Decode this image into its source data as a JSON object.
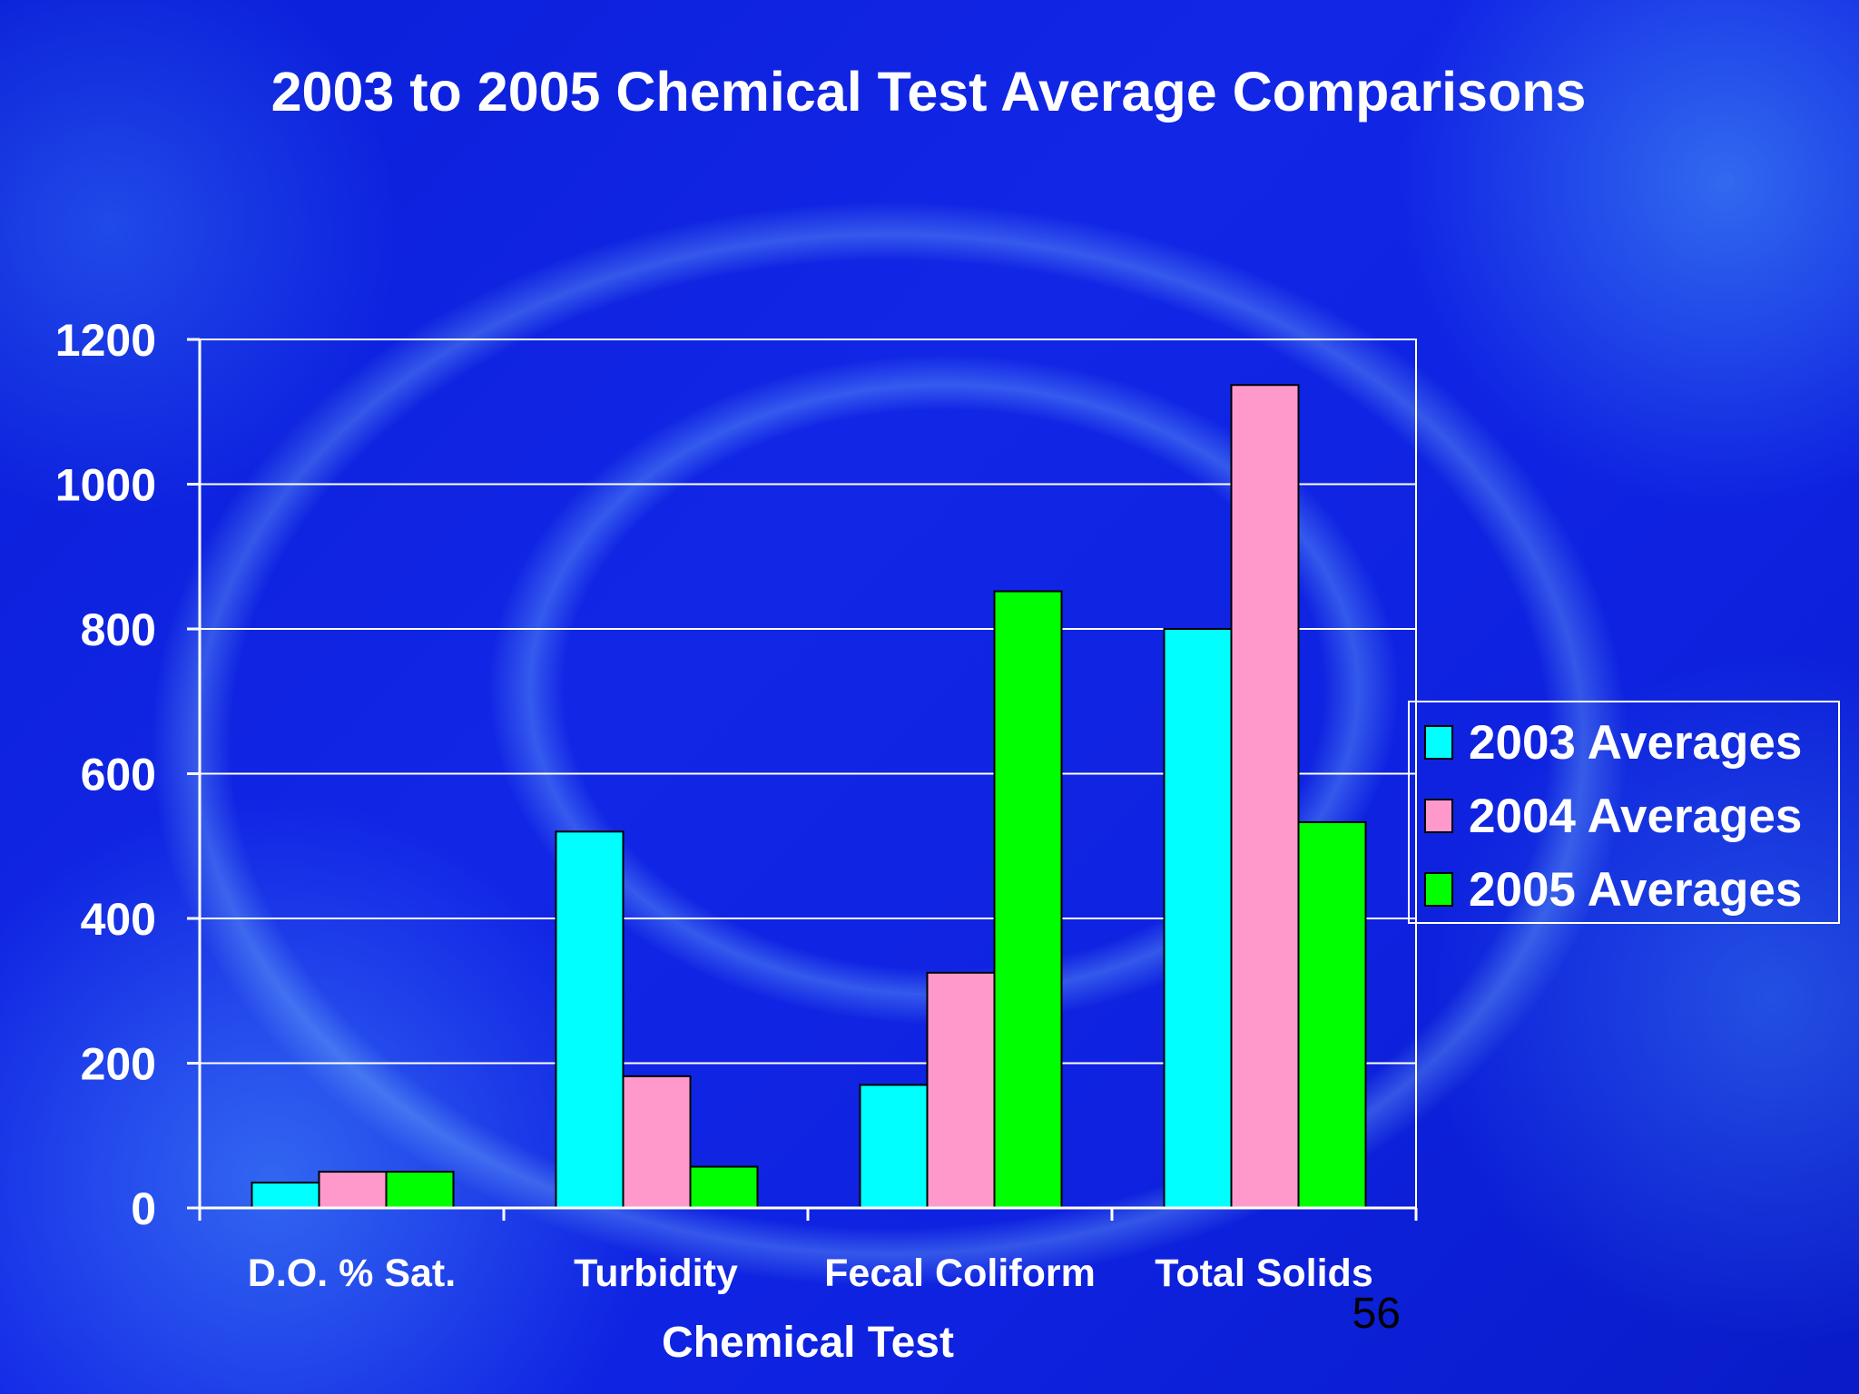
{
  "slide_number": "56",
  "chart_data": {
    "type": "bar",
    "title": "2003 to 2005 Chemical Test Average Comparisons",
    "xlabel": "Chemical Test",
    "ylabel": "",
    "categories": [
      "D.O. % Sat.",
      "Turbidity",
      "Fecal Coliform",
      "Total Solids"
    ],
    "series": [
      {
        "name": "2003 Averages",
        "color": "#00ffff",
        "values": [
          35,
          520,
          170,
          800
        ]
      },
      {
        "name": "2004 Averages",
        "color": "#ff99cc",
        "values": [
          50,
          182,
          325,
          1137
        ]
      },
      {
        "name": "2005 Averages",
        "color": "#00ff00",
        "values": [
          50,
          57,
          852,
          533
        ]
      }
    ],
    "yticks": [
      "0",
      "200",
      "400",
      "600",
      "800",
      "1000",
      "1200"
    ],
    "ylim": [
      0,
      1200
    ],
    "grid": true,
    "legend_position": "right"
  }
}
